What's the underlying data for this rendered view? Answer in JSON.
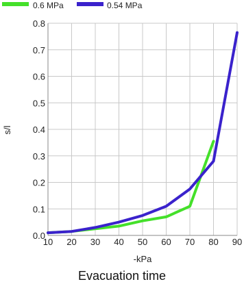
{
  "chart_data": {
    "type": "line",
    "title": "",
    "xlabel": "-kPa",
    "ylabel": "s/l",
    "caption": "Evacuation time",
    "x": [
      10,
      20,
      30,
      40,
      50,
      60,
      70,
      80,
      90
    ],
    "x_ticks": [
      "10",
      "20",
      "30",
      "40",
      "50",
      "60",
      "70",
      "80",
      "90"
    ],
    "y_ticks": [
      "0.0",
      "0.1",
      "0.2",
      "0.3",
      "0.4",
      "0.5",
      "0.6",
      "0.7",
      "0.8"
    ],
    "xlim": [
      10,
      90
    ],
    "ylim": [
      0,
      0.8
    ],
    "grid": true,
    "legend_position": "top-left",
    "series": [
      {
        "name": "0.6 MPa",
        "color": "#44e02a",
        "points": [
          [
            10,
            0.01
          ],
          [
            20,
            0.015
          ],
          [
            30,
            0.025
          ],
          [
            40,
            0.035
          ],
          [
            50,
            0.055
          ],
          [
            60,
            0.07
          ],
          [
            70,
            0.11
          ],
          [
            80,
            0.355
          ]
        ]
      },
      {
        "name": "0.54 MPa",
        "color": "#3a22cc",
        "points": [
          [
            10,
            0.01
          ],
          [
            20,
            0.015
          ],
          [
            30,
            0.03
          ],
          [
            40,
            0.05
          ],
          [
            50,
            0.075
          ],
          [
            60,
            0.11
          ],
          [
            70,
            0.175
          ],
          [
            80,
            0.28
          ],
          [
            90,
            0.765
          ]
        ]
      }
    ]
  }
}
